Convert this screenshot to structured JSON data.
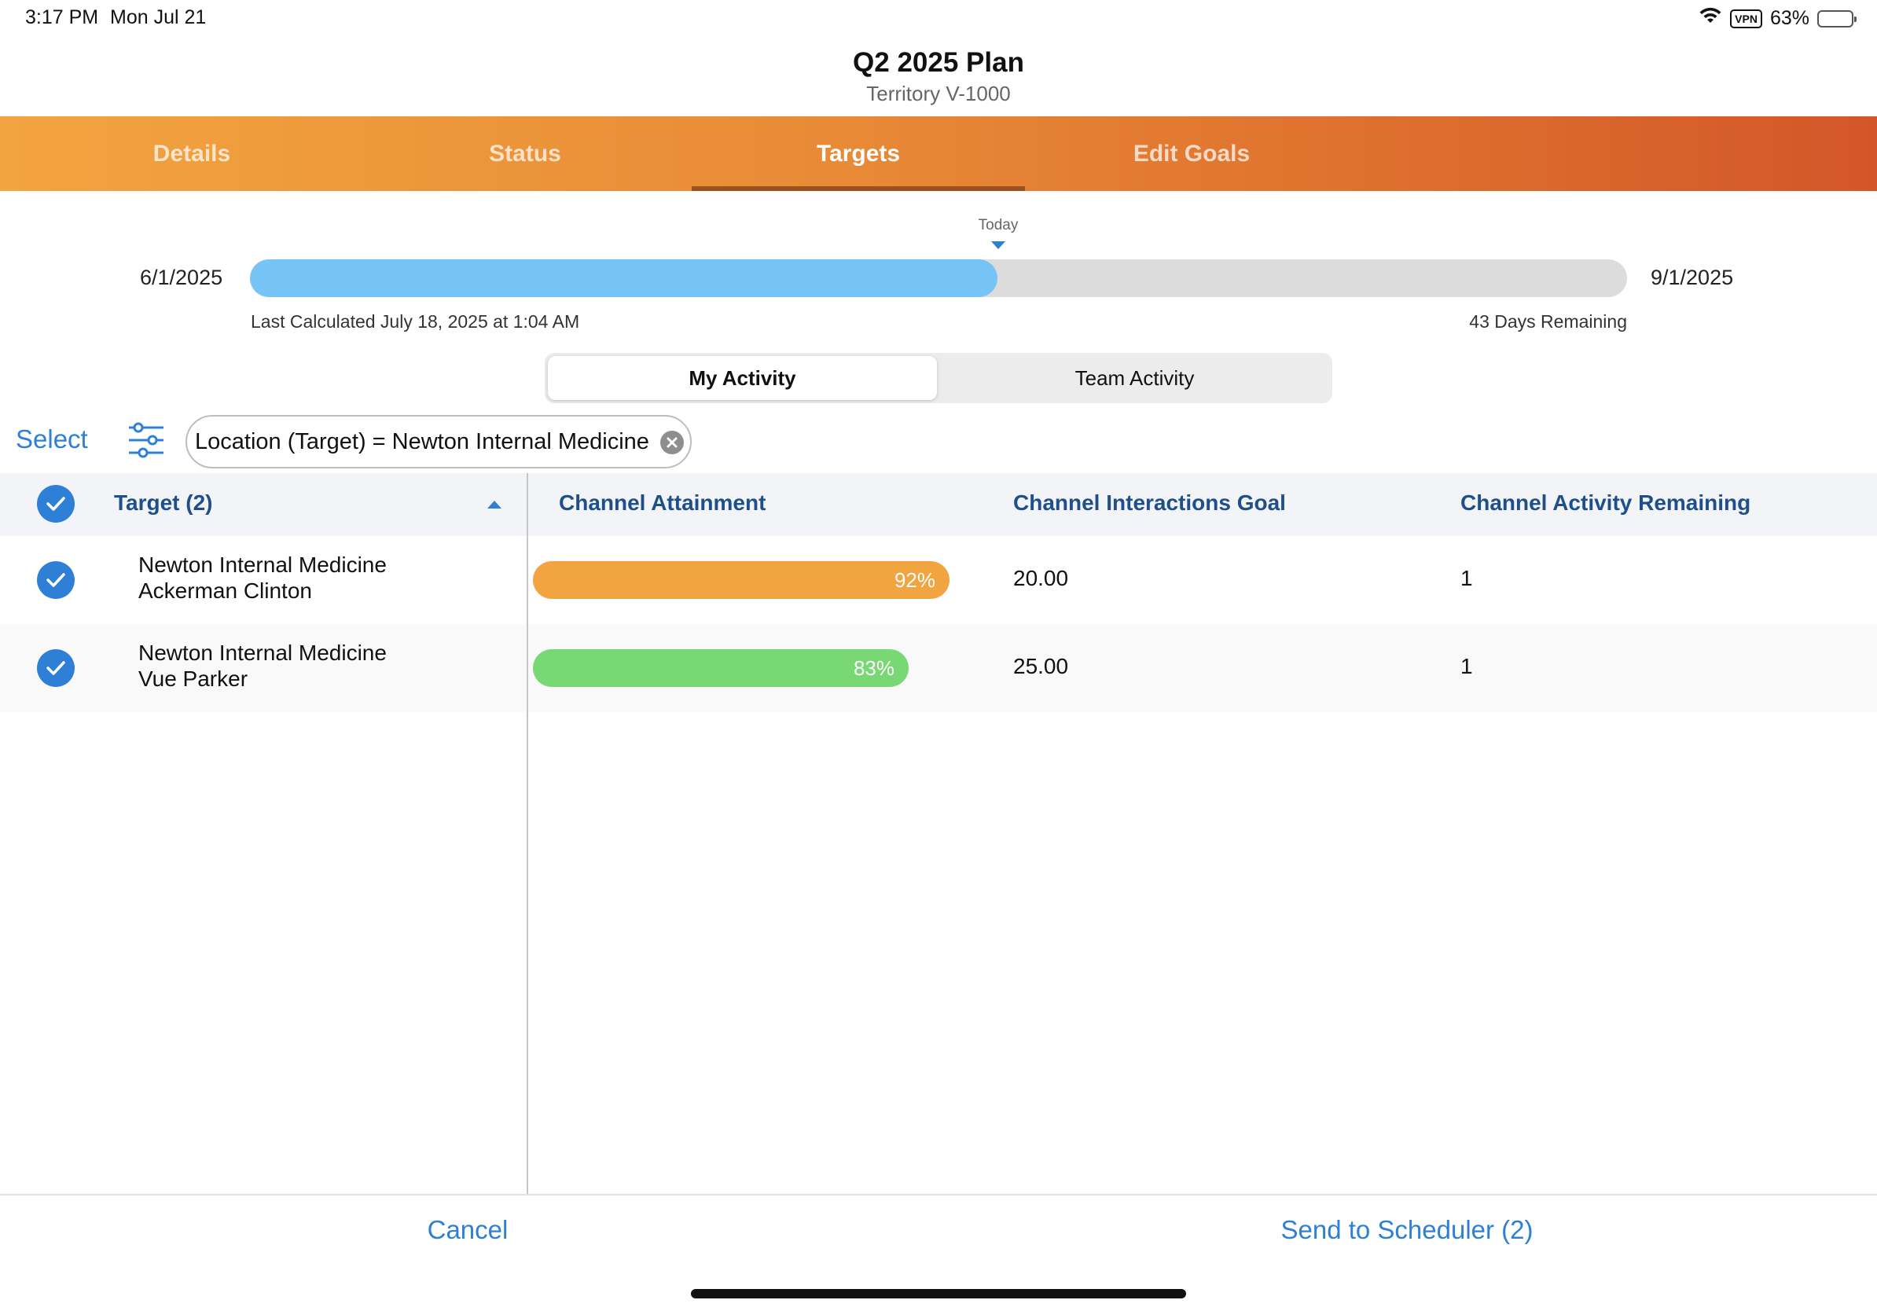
{
  "status_bar": {
    "time": "3:17 PM",
    "date": "Mon Jul 21",
    "vpn": "VPN",
    "battery": "63%",
    "battery_level": 0.63,
    "wifi_icon": "wifi-icon",
    "battery_icon": "battery-icon"
  },
  "header": {
    "title": "Q2 2025 Plan",
    "subtitle": "Territory V-1000"
  },
  "tabs": [
    {
      "label": "Details",
      "active": false
    },
    {
      "label": "Status",
      "active": false
    },
    {
      "label": "Targets",
      "active": true
    },
    {
      "label": "Edit Goals",
      "active": false
    }
  ],
  "colors": {
    "accent": "#2e7fd6",
    "tab_gradient_start": "#f2a440",
    "tab_gradient_end": "#d3562a",
    "timeline_fill": "#76c3f5",
    "bar_orange": "#f2a440",
    "bar_green": "#78d873"
  },
  "timeline": {
    "today_label": "Today",
    "start_date": "6/1/2025",
    "end_date": "9/1/2025",
    "progress": 0.543,
    "last_calculated": "Last Calculated July 18, 2025 at 1:04 AM",
    "days_remaining": "43 Days Remaining"
  },
  "segmented": {
    "options": [
      "My Activity",
      "Team Activity"
    ],
    "selected": "My Activity"
  },
  "toolbar": {
    "select_label": "Select",
    "filter_icon": "sliders-icon",
    "filter_chip": "Location (Target) = Newton Internal Medicine",
    "chip_close_icon": "clear-icon"
  },
  "table": {
    "columns": {
      "target": "Target (2)",
      "attainment": "Channel Attainment",
      "goal": "Channel Interactions Goal",
      "remaining": "Channel Activity Remaining"
    },
    "rows": [
      {
        "line1": "Newton Internal Medicine",
        "line2": "Ackerman Clinton",
        "attainment_label": "92%",
        "attainment": 0.92,
        "bar_color": "#f2a440",
        "goal": "20.00",
        "remaining": "1",
        "checked": true
      },
      {
        "line1": "Newton Internal Medicine",
        "line2": "Vue Parker",
        "attainment_label": "83%",
        "attainment": 0.83,
        "bar_color": "#78d873",
        "goal": "25.00",
        "remaining": "1",
        "checked": true
      }
    ]
  },
  "footer": {
    "cancel_label": "Cancel",
    "send_label": "Send to Scheduler (2)"
  }
}
